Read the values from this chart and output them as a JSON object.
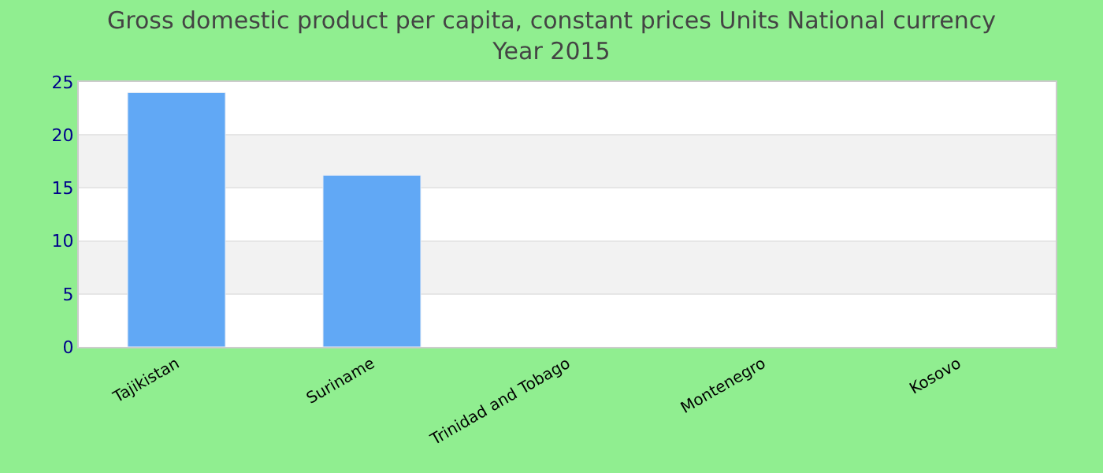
{
  "chart_data": {
    "type": "bar",
    "title": "Gross domestic product per capita, constant prices Units National currency\nYear 2015",
    "categories": [
      "Tajikistan",
      "Suriname",
      "Trinidad and Tobago",
      "Montenegro",
      "Kosovo"
    ],
    "values": [
      24.0,
      16.2,
      null,
      null,
      null
    ],
    "color": "#61a8f5",
    "ylim": [
      0,
      25
    ],
    "yticks": [
      0,
      5,
      10,
      15,
      20,
      25
    ],
    "grid": "y"
  }
}
